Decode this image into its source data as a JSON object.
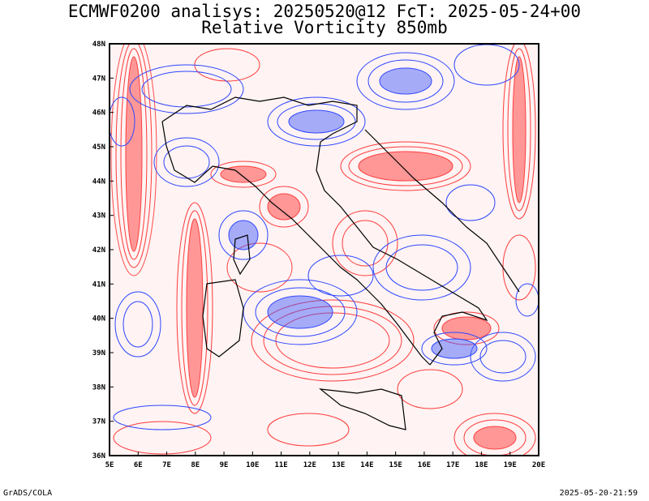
{
  "title_line1": "ECMWF0200 analisys: 20250520@12 FcT: 2025-05-24+00",
  "title_line2": "Relative Vorticity 850mb",
  "footer_left": "GrADS/COLA",
  "footer_right": "2025-05-20-21:59",
  "lat_labels": [
    "48N",
    "47N",
    "46N",
    "45N",
    "44N",
    "43N",
    "42N",
    "41N",
    "40N",
    "39N",
    "38N",
    "37N",
    "36N"
  ],
  "lon_labels": [
    "5E",
    "6E",
    "7E",
    "8E",
    "9E",
    "10E",
    "11E",
    "12E",
    "13E",
    "14E",
    "15E",
    "16E",
    "17E",
    "18E",
    "19E",
    "20E"
  ],
  "colors": {
    "positive": "#ff3b3b",
    "negative": "#2b46ff",
    "coast": "#000000"
  }
}
